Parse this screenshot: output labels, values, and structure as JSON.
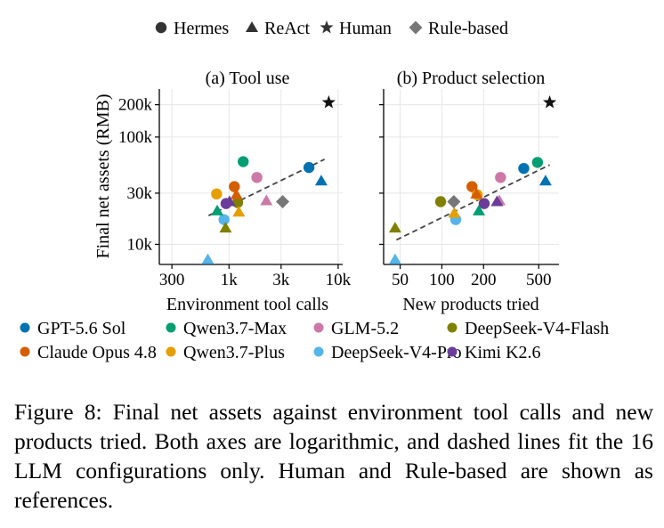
{
  "caption": {
    "label": "Figure 8:",
    "text": "Final net assets against environment tool calls and new products tried. Both axes are logarithmic, and dashed lines fit the 16 LLM configurations only. Human and Rule-based are shown as references."
  },
  "marker_legend": [
    {
      "label": "Hermes",
      "marker": "circle"
    },
    {
      "label": "ReAct",
      "marker": "triangle"
    },
    {
      "label": "Human",
      "marker": "star"
    },
    {
      "label": "Rule-based",
      "marker": "diamond"
    }
  ],
  "model_legend": [
    {
      "label": "GPT-5.6 Sol",
      "color": "#0072b2"
    },
    {
      "label": "Qwen3.7-Max",
      "color": "#009e73"
    },
    {
      "label": "GLM-5.2",
      "color": "#cc79a7"
    },
    {
      "label": "DeepSeek-V4-Flash",
      "color": "#808000"
    },
    {
      "label": "Claude Opus 4.8",
      "color": "#d55e00"
    },
    {
      "label": "Qwen3.7-Plus",
      "color": "#e69f00"
    },
    {
      "label": "DeepSeek-V4-Pro",
      "color": "#56b4e9"
    },
    {
      "label": "Kimi K2.6",
      "color": "#6a3d9a"
    }
  ],
  "chart_data": [
    {
      "type": "scatter",
      "title": "(a) Tool use",
      "xlabel": "Environment tool calls",
      "ylabel": "Final net assets (RMB)",
      "x_scale": "log",
      "y_scale": "log",
      "xlim": [
        230,
        11000
      ],
      "ylim": [
        6500,
        280000
      ],
      "xticks": [
        {
          "v": 300,
          "label": "300"
        },
        {
          "v": 1000,
          "label": "1k"
        },
        {
          "v": 3000,
          "label": "3k"
        },
        {
          "v": 10000,
          "label": "10k"
        }
      ],
      "yticks": [
        {
          "v": 10000,
          "label": "10k"
        },
        {
          "v": 30000,
          "label": "30k"
        },
        {
          "v": 100000,
          "label": "100k"
        },
        {
          "v": 200000,
          "label": "200k"
        }
      ],
      "grid": true,
      "fit_line": {
        "style": "dashed",
        "x": [
          650,
          7500
        ],
        "y": [
          18500,
          62000
        ]
      },
      "points": [
        {
          "model": "GPT-5.6 Sol",
          "agent": "Hermes",
          "x": 5400,
          "y": 52000
        },
        {
          "model": "GPT-5.6 Sol",
          "agent": "ReAct",
          "x": 7000,
          "y": 39000
        },
        {
          "model": "Qwen3.7-Max",
          "agent": "Hermes",
          "x": 1350,
          "y": 59000
        },
        {
          "model": "Qwen3.7-Max",
          "agent": "ReAct",
          "x": 780,
          "y": 20500
        },
        {
          "model": "GLM-5.2",
          "agent": "Hermes",
          "x": 1800,
          "y": 42000
        },
        {
          "model": "GLM-5.2",
          "agent": "ReAct",
          "x": 2200,
          "y": 25500
        },
        {
          "model": "Claude Opus 4.8",
          "agent": "Hermes",
          "x": 1120,
          "y": 34500
        },
        {
          "model": "Claude Opus 4.8",
          "agent": "ReAct",
          "x": 1170,
          "y": 29000
        },
        {
          "model": "Qwen3.7-Plus",
          "agent": "Hermes",
          "x": 770,
          "y": 29500
        },
        {
          "model": "Qwen3.7-Plus",
          "agent": "ReAct",
          "x": 1230,
          "y": 20000
        },
        {
          "model": "DeepSeek-V4-Pro",
          "agent": "Hermes",
          "x": 900,
          "y": 17000
        },
        {
          "model": "DeepSeek-V4-Pro",
          "agent": "ReAct",
          "x": 640,
          "y": 7200
        },
        {
          "model": "DeepSeek-V4-Flash",
          "agent": "Hermes",
          "x": 1200,
          "y": 24500
        },
        {
          "model": "DeepSeek-V4-Flash",
          "agent": "ReAct",
          "x": 930,
          "y": 14200
        },
        {
          "model": "Kimi K2.6",
          "agent": "Hermes",
          "x": 940,
          "y": 24000
        },
        {
          "model": "Kimi K2.6",
          "agent": "ReAct",
          "x": 1010,
          "y": 25000
        },
        {
          "model": "Human",
          "agent": "Human",
          "x": 8200,
          "y": 210000
        },
        {
          "model": "Rule-based",
          "agent": "Rule-based",
          "x": 3100,
          "y": 25000
        }
      ]
    },
    {
      "type": "scatter",
      "title": "(b) Product selection",
      "xlabel": "New products tried",
      "ylabel": "",
      "x_scale": "log",
      "y_scale": "log",
      "xlim": [
        38,
        700
      ],
      "ylim": [
        6500,
        280000
      ],
      "xticks": [
        {
          "v": 50,
          "label": "50"
        },
        {
          "v": 100,
          "label": "100"
        },
        {
          "v": 200,
          "label": "200"
        },
        {
          "v": 500,
          "label": "500"
        }
      ],
      "yticks": [
        {
          "v": 10000,
          "label": ""
        },
        {
          "v": 30000,
          "label": ""
        },
        {
          "v": 100000,
          "label": ""
        },
        {
          "v": 200000,
          "label": ""
        }
      ],
      "grid": true,
      "fit_line": {
        "style": "dashed",
        "x": [
          47,
          600
        ],
        "y": [
          11000,
          55000
        ]
      },
      "points": [
        {
          "model": "GPT-5.6 Sol",
          "agent": "Hermes",
          "x": 390,
          "y": 51000
        },
        {
          "model": "GPT-5.6 Sol",
          "agent": "ReAct",
          "x": 560,
          "y": 39000
        },
        {
          "model": "Qwen3.7-Max",
          "agent": "Hermes",
          "x": 490,
          "y": 58000
        },
        {
          "model": "Qwen3.7-Max",
          "agent": "ReAct",
          "x": 185,
          "y": 20500
        },
        {
          "model": "GLM-5.2",
          "agent": "Hermes",
          "x": 265,
          "y": 42000
        },
        {
          "model": "GLM-5.2",
          "agent": "ReAct",
          "x": 260,
          "y": 25500
        },
        {
          "model": "Claude Opus 4.8",
          "agent": "Hermes",
          "x": 165,
          "y": 34500
        },
        {
          "model": "Claude Opus 4.8",
          "agent": "ReAct",
          "x": 178,
          "y": 29500
        },
        {
          "model": "Qwen3.7-Plus",
          "agent": "Hermes",
          "x": 180,
          "y": 29000
        },
        {
          "model": "Qwen3.7-Plus",
          "agent": "ReAct",
          "x": 123,
          "y": 19500
        },
        {
          "model": "DeepSeek-V4-Pro",
          "agent": "Hermes",
          "x": 126,
          "y": 17000
        },
        {
          "model": "DeepSeek-V4-Pro",
          "agent": "ReAct",
          "x": 46,
          "y": 7200
        },
        {
          "model": "DeepSeek-V4-Flash",
          "agent": "Hermes",
          "x": 98,
          "y": 25000
        },
        {
          "model": "DeepSeek-V4-Flash",
          "agent": "ReAct",
          "x": 46,
          "y": 14200
        },
        {
          "model": "Kimi K2.6",
          "agent": "Hermes",
          "x": 202,
          "y": 24000
        },
        {
          "model": "Kimi K2.6",
          "agent": "ReAct",
          "x": 250,
          "y": 25000
        },
        {
          "model": "Human",
          "agent": "Human",
          "x": 600,
          "y": 210000
        },
        {
          "model": "Rule-based",
          "agent": "Rule-based",
          "x": 122,
          "y": 25000
        }
      ]
    }
  ]
}
